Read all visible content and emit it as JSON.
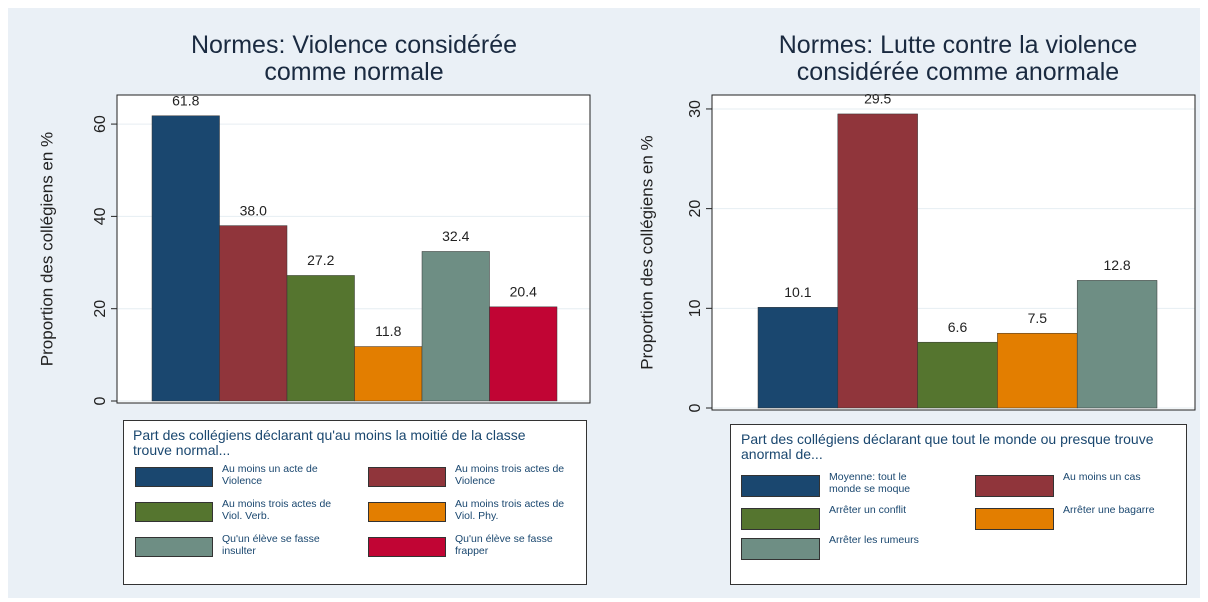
{
  "chart_data": [
    {
      "type": "bar",
      "title": [
        "Normes: Violence considérée",
        "comme normale"
      ],
      "ylabel": "Proportion des collégiens en %",
      "legend_title": "Part des collégiens déclarant qu'au moins la moitié de la classe trouve normal...",
      "categories": [
        "Au moins un acte de Violence",
        "Au moins trois actes de Violence",
        "Au moins trois actes de Viol. Verb.",
        "Au moins trois actes de Viol. Phy.",
        "Qu'un élève se fasse insulter",
        "Qu'un élève se fasse frapper"
      ],
      "values": [
        61.8,
        38.0,
        27.2,
        11.8,
        32.4,
        20.4
      ],
      "value_labels": [
        "61.8",
        "38.0",
        "27.2",
        "11.8",
        "32.4",
        "20.4"
      ],
      "colors": [
        "#1a476f",
        "#90353b",
        "#55752f",
        "#e37e00",
        "#6e8e84",
        "#c10534"
      ],
      "ylim": [
        0,
        66.3
      ],
      "yticks": [
        0,
        20,
        40,
        60
      ],
      "grid": true
    },
    {
      "type": "bar",
      "title": [
        "Normes: Lutte contre la violence",
        "considérée comme anormale"
      ],
      "ylabel": "Proportion des collégiens en %",
      "legend_title": "Part des collégiens déclarant que tout le monde ou presque trouve anormal de...",
      "categories": [
        "Moyenne: tout le monde se moque",
        "Au moins un cas",
        "Arrêter un conflit",
        "Arrêter une bagarre",
        "Arrêter les rumeurs"
      ],
      "values": [
        10.1,
        29.5,
        6.6,
        7.5,
        12.8
      ],
      "value_labels": [
        "10.1",
        "29.5",
        "6.6",
        "7.5",
        "12.8"
      ],
      "colors": [
        "#1a476f",
        "#90353b",
        "#55752f",
        "#e37e00",
        "#6e8e84"
      ],
      "ylim": [
        0,
        31.4
      ],
      "yticks": [
        0,
        10,
        20,
        30
      ],
      "grid": true
    }
  ]
}
